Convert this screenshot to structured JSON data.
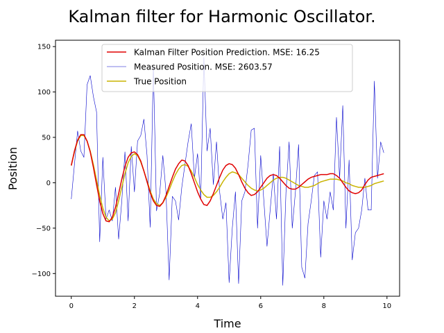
{
  "chart_data": {
    "type": "line",
    "title": "Kalman filter for Harmonic Oscillator.",
    "xlabel": "Time",
    "ylabel": "Position",
    "xlim": [
      -0.5,
      10.4
    ],
    "ylim": [
      -125,
      157
    ],
    "xticks": [
      0,
      2,
      4,
      6,
      8,
      10
    ],
    "yticks": [
      -100,
      -50,
      0,
      50,
      100,
      150
    ],
    "xtick_labels": [
      "0",
      "2",
      "4",
      "6",
      "8",
      "10"
    ],
    "ytick_labels": [
      "−100",
      "−50",
      "0",
      "50",
      "100",
      "150"
    ],
    "grid": false,
    "legend_position": "top-center",
    "series": [
      {
        "name": "Kalman Filter Position Prediction. MSE: 16.25",
        "color": "#e00000",
        "x": [
          0.0,
          0.1,
          0.2,
          0.3,
          0.4,
          0.5,
          0.6,
          0.7,
          0.8,
          0.9,
          1.0,
          1.1,
          1.2,
          1.3,
          1.4,
          1.5,
          1.6,
          1.7,
          1.8,
          1.9,
          2.0,
          2.1,
          2.2,
          2.3,
          2.4,
          2.5,
          2.6,
          2.7,
          2.8,
          2.9,
          3.0,
          3.1,
          3.2,
          3.3,
          3.4,
          3.5,
          3.6,
          3.7,
          3.8,
          3.9,
          4.0,
          4.1,
          4.2,
          4.3,
          4.4,
          4.5,
          4.6,
          4.7,
          4.8,
          4.9,
          5.0,
          5.1,
          5.2,
          5.3,
          5.4,
          5.5,
          5.6,
          5.7,
          5.8,
          5.9,
          6.0,
          6.1,
          6.2,
          6.3,
          6.4,
          6.5,
          6.6,
          6.7,
          6.8,
          6.9,
          7.0,
          7.1,
          7.2,
          7.3,
          7.4,
          7.5,
          7.6,
          7.7,
          7.8,
          7.9,
          8.0,
          8.1,
          8.2,
          8.3,
          8.4,
          8.5,
          8.6,
          8.7,
          8.8,
          8.9,
          9.0,
          9.1,
          9.2,
          9.3,
          9.4,
          9.5,
          9.6,
          9.7,
          9.8,
          9.9
        ],
        "y": [
          19,
          35,
          47,
          53,
          53,
          46,
          34,
          17,
          -2,
          -20,
          -34,
          -42,
          -43,
          -38,
          -27,
          -12,
          4,
          18,
          28,
          33,
          34,
          31,
          24,
          13,
          1,
          -11,
          -20,
          -25,
          -26,
          -22,
          -14,
          -4,
          6,
          15,
          21,
          25,
          24,
          19,
          10,
          0,
          -10,
          -18,
          -24,
          -25,
          -20,
          -12,
          -3,
          6,
          14,
          19,
          21,
          20,
          16,
          9,
          1,
          -6,
          -11,
          -14,
          -13,
          -10,
          -5,
          0,
          5,
          8,
          9,
          8,
          5,
          1,
          -3,
          -6,
          -7,
          -7,
          -5,
          -2,
          1,
          4,
          6,
          7,
          8,
          9,
          9,
          9,
          10,
          10,
          8,
          5,
          0,
          -5,
          -9,
          -11,
          -12,
          -11,
          -8,
          -2,
          3,
          6,
          7,
          8,
          9,
          10
        ]
      },
      {
        "name": "Measured Position. MSE: 2603.57",
        "color": "#0000cc",
        "x": [
          0.0,
          0.1,
          0.2,
          0.3,
          0.4,
          0.5,
          0.6,
          0.7,
          0.8,
          0.9,
          1.0,
          1.1,
          1.2,
          1.3,
          1.4,
          1.5,
          1.6,
          1.7,
          1.8,
          1.9,
          2.0,
          2.1,
          2.2,
          2.3,
          2.4,
          2.5,
          2.6,
          2.7,
          2.8,
          2.9,
          3.0,
          3.1,
          3.2,
          3.3,
          3.4,
          3.5,
          3.6,
          3.7,
          3.8,
          3.9,
          4.0,
          4.1,
          4.2,
          4.3,
          4.4,
          4.5,
          4.6,
          4.7,
          4.8,
          4.9,
          5.0,
          5.1,
          5.2,
          5.3,
          5.4,
          5.5,
          5.6,
          5.7,
          5.8,
          5.9,
          6.0,
          6.1,
          6.2,
          6.3,
          6.4,
          6.5,
          6.6,
          6.7,
          6.8,
          6.9,
          7.0,
          7.1,
          7.2,
          7.3,
          7.4,
          7.5,
          7.6,
          7.7,
          7.8,
          7.9,
          8.0,
          8.1,
          8.2,
          8.3,
          8.4,
          8.5,
          8.6,
          8.7,
          8.8,
          8.9,
          9.0,
          9.1,
          9.2,
          9.3,
          9.4,
          9.5,
          9.6,
          9.7,
          9.8,
          9.9
        ],
        "y": [
          -18,
          20,
          57,
          35,
          28,
          108,
          118,
          95,
          78,
          -65,
          28,
          -40,
          -30,
          -42,
          -5,
          -62,
          -20,
          34,
          -42,
          40,
          -10,
          46,
          52,
          70,
          30,
          -49,
          128,
          -31,
          -12,
          30,
          -10,
          -107,
          -15,
          -20,
          -41,
          -5,
          20,
          45,
          65,
          5,
          32,
          -18,
          138,
          35,
          60,
          -2,
          45,
          -10,
          -40,
          -22,
          -110,
          -50,
          -10,
          -111,
          -20,
          -10,
          20,
          58,
          60,
          -50,
          30,
          -20,
          -70,
          -30,
          10,
          -40,
          40,
          -113,
          -11,
          45,
          -50,
          -10,
          42,
          -93,
          -105,
          -45,
          -20,
          8,
          12,
          -82,
          -20,
          -40,
          -10,
          -30,
          72,
          5,
          85,
          -50,
          25,
          -85,
          -55,
          -50,
          -30,
          5,
          -30,
          -30,
          112,
          5,
          45,
          33
        ]
      },
      {
        "name": "True Position",
        "color": "#c9b300",
        "x": [
          0.0,
          0.1,
          0.2,
          0.3,
          0.4,
          0.5,
          0.6,
          0.7,
          0.8,
          0.9,
          1.0,
          1.1,
          1.2,
          1.3,
          1.4,
          1.5,
          1.6,
          1.7,
          1.8,
          1.9,
          2.0,
          2.1,
          2.2,
          2.3,
          2.4,
          2.5,
          2.6,
          2.7,
          2.8,
          2.9,
          3.0,
          3.1,
          3.2,
          3.3,
          3.4,
          3.5,
          3.6,
          3.7,
          3.8,
          3.9,
          4.0,
          4.1,
          4.2,
          4.3,
          4.4,
          4.5,
          4.6,
          4.7,
          4.8,
          4.9,
          5.0,
          5.1,
          5.2,
          5.3,
          5.4,
          5.5,
          5.6,
          5.7,
          5.8,
          5.9,
          6.0,
          6.1,
          6.2,
          6.3,
          6.4,
          6.5,
          6.6,
          6.7,
          6.8,
          6.9,
          7.0,
          7.1,
          7.2,
          7.3,
          7.4,
          7.5,
          7.6,
          7.7,
          7.8,
          7.9,
          8.0,
          8.1,
          8.2,
          8.3,
          8.4,
          8.5,
          8.6,
          8.7,
          8.8,
          8.9,
          9.0,
          9.1,
          9.2,
          9.3,
          9.4,
          9.5,
          9.6,
          9.7,
          9.8,
          9.9
        ],
        "y": [
          19,
          34,
          46,
          52,
          52,
          46,
          35,
          20,
          3,
          -14,
          -28,
          -38,
          -42,
          -40,
          -33,
          -20,
          -5,
          10,
          22,
          29,
          32,
          30,
          23,
          13,
          2,
          -9,
          -18,
          -23,
          -25,
          -22,
          -16,
          -8,
          1,
          9,
          15,
          19,
          20,
          18,
          13,
          6,
          -2,
          -8,
          -13,
          -16,
          -16,
          -14,
          -10,
          -5,
          1,
          6,
          10,
          12,
          11,
          9,
          5,
          1,
          -3,
          -6,
          -8,
          -9,
          -8,
          -6,
          -3,
          0,
          3,
          5,
          6,
          6,
          5,
          3,
          1,
          -1,
          -3,
          -4,
          -5,
          -5,
          -4,
          -3,
          -1,
          1,
          2,
          3,
          4,
          4,
          4,
          3,
          2,
          0,
          -1,
          -3,
          -4,
          -5,
          -5,
          -5,
          -4,
          -3,
          -1,
          0,
          1,
          2
        ]
      }
    ]
  }
}
